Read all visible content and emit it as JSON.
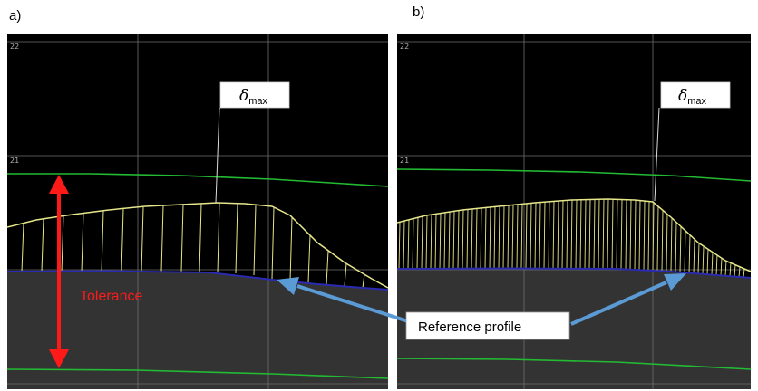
{
  "panels": [
    {
      "label": "a)",
      "y_ticks": [
        "22",
        "21"
      ],
      "delta": {
        "symbol": "δ",
        "subscript": "max"
      }
    },
    {
      "label": "b)",
      "y_ticks": [
        "22",
        "21"
      ],
      "delta": {
        "symbol": "δ",
        "subscript": "max"
      }
    }
  ],
  "annotations": {
    "tolerance_label": "Tolerance",
    "reference_label": "Reference profile"
  },
  "colors": {
    "plot_background": "#000000",
    "ground_fill": "#333333",
    "grid": "#6e6e6e",
    "tolerance_bounds": "#22bb33",
    "measured_profile": "#e6e68a",
    "reference_profile": "#2a2ab0",
    "tolerance_arrow": "#ff1a1a",
    "callout_arrow": "#5b9bd5"
  }
}
